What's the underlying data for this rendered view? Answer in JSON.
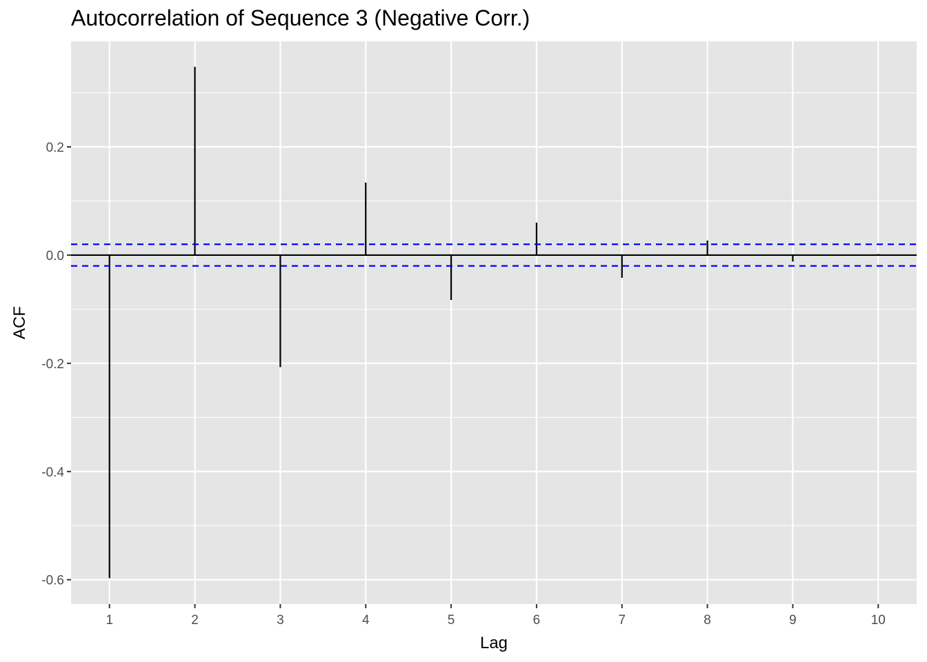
{
  "chart_data": {
    "type": "bar",
    "title": "Autocorrelation of Sequence 3 (Negative Corr.)",
    "xlabel": "Lag",
    "ylabel": "ACF",
    "x": [
      1,
      2,
      3,
      4,
      5,
      6,
      7,
      8,
      9,
      10
    ],
    "values": [
      -0.597,
      0.348,
      -0.207,
      0.134,
      -0.083,
      0.06,
      -0.042,
      0.027,
      -0.012,
      0.002
    ],
    "x_ticks": [
      "1",
      "2",
      "3",
      "4",
      "5",
      "6",
      "7",
      "8",
      "9",
      "10"
    ],
    "y_ticks": [
      "-0.6",
      "-0.4",
      "-0.2",
      "0.0",
      "0.2"
    ],
    "y_tick_values": [
      -0.6,
      -0.4,
      -0.2,
      0.0,
      0.2
    ],
    "confidence_bound": 0.02,
    "xlim": [
      0.55,
      10.45
    ],
    "ylim": [
      -0.645,
      0.395
    ],
    "grid": true,
    "colors": {
      "panel": "#e5e5e5",
      "grid": "#ffffff",
      "bars": "#000000",
      "confidence": "#0000ff"
    }
  }
}
